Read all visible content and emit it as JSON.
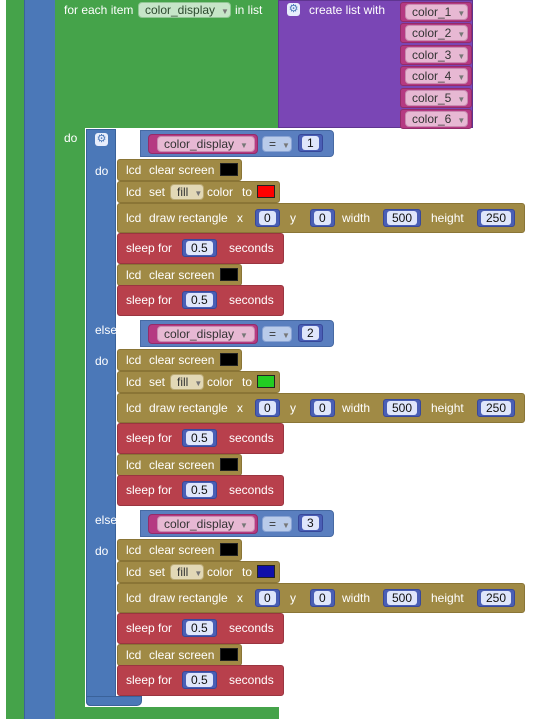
{
  "foreach": {
    "label_for": "for each item",
    "var": "color_display",
    "label_in": "in list",
    "label_do": "do",
    "list_label": "create list with",
    "items": [
      "color_1",
      "color_2",
      "color_3",
      "color_4",
      "color_5",
      "color_6"
    ]
  },
  "branches": [
    {
      "keyword": "if",
      "keyword_do": "do",
      "var": "color_display",
      "op": "=",
      "value": "1",
      "color_hex": "#ff0000"
    },
    {
      "keyword": "else if",
      "keyword_do": "do",
      "var": "color_display",
      "op": "=",
      "value": "2",
      "color_hex": "#22cc22"
    },
    {
      "keyword": "else if",
      "keyword_do": "do",
      "var": "color_display",
      "op": "=",
      "value": "3",
      "color_hex": "#1010aa"
    }
  ],
  "block_text": {
    "lcd": "lcd",
    "clear_screen": "clear screen",
    "set": "set",
    "fill": "fill",
    "color": "color",
    "to": "to",
    "draw_rectangle": "draw rectangle",
    "x": "x",
    "x_value": "0",
    "y": "y",
    "y_value": "0",
    "width": "width",
    "width_value": "500",
    "height": "height",
    "height_value": "250",
    "sleep_for": "sleep for",
    "sleep_value": "0.5",
    "seconds": "seconds"
  },
  "colors": {
    "green_loop": "#45a34a",
    "blue_outer": "#4b78b8",
    "purple_list": "#7a46b5",
    "lcd_block": "#a08a45",
    "sleep_block": "#b8404c",
    "variable_block": "#b53a82",
    "clear_swatch": "#000000"
  }
}
